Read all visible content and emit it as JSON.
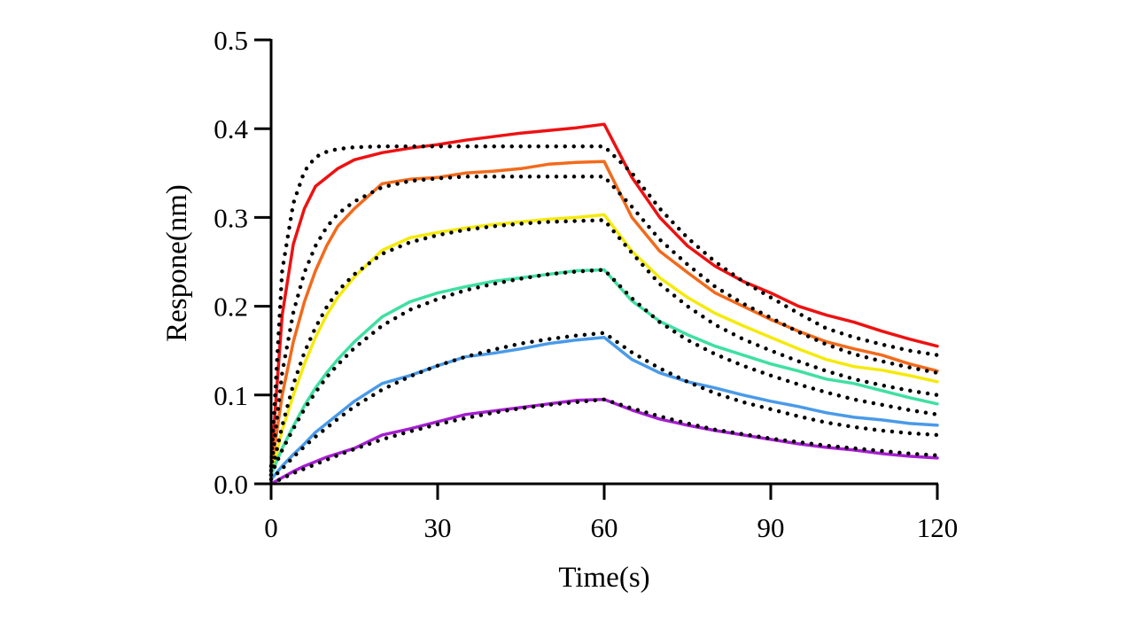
{
  "chart_data": {
    "type": "line",
    "title": "",
    "xlabel": "Time(s)",
    "ylabel": "Respone(nm)",
    "xlim": [
      0,
      120
    ],
    "ylim": [
      0,
      0.5
    ],
    "x_ticks": [
      "0",
      "30",
      "60",
      "90",
      "120"
    ],
    "x_tick_values": [
      0,
      30,
      60,
      90,
      120
    ],
    "y_ticks": [
      "0.0",
      "0.1",
      "0.2",
      "0.3",
      "0.4",
      "0.5"
    ],
    "y_tick_values": [
      0,
      0.1,
      0.2,
      0.3,
      0.4,
      0.5
    ],
    "grid": false,
    "legend": "none",
    "x": [
      0,
      2,
      4,
      6,
      8,
      10,
      12,
      15,
      20,
      25,
      30,
      35,
      40,
      45,
      50,
      55,
      60,
      65,
      70,
      75,
      80,
      85,
      90,
      95,
      100,
      105,
      110,
      115,
      120
    ],
    "series": [
      {
        "color": "#ee1111",
        "values": [
          0.02,
          0.19,
          0.27,
          0.31,
          0.335,
          0.345,
          0.355,
          0.365,
          0.373,
          0.378,
          0.382,
          0.387,
          0.391,
          0.395,
          0.398,
          0.401,
          0.405,
          0.345,
          0.3,
          0.268,
          0.245,
          0.228,
          0.215,
          0.2,
          0.19,
          0.182,
          0.172,
          0.163,
          0.155
        ]
      },
      {
        "color": "#f26a1b",
        "values": [
          0.015,
          0.1,
          0.16,
          0.205,
          0.24,
          0.268,
          0.29,
          0.31,
          0.338,
          0.343,
          0.345,
          0.35,
          0.352,
          0.355,
          0.36,
          0.362,
          0.363,
          0.3,
          0.262,
          0.238,
          0.215,
          0.2,
          0.185,
          0.172,
          0.16,
          0.152,
          0.145,
          0.135,
          0.127
        ]
      },
      {
        "color": "#f5ea0a",
        "values": [
          0.01,
          0.06,
          0.1,
          0.135,
          0.165,
          0.19,
          0.21,
          0.233,
          0.263,
          0.277,
          0.283,
          0.288,
          0.292,
          0.295,
          0.298,
          0.3,
          0.303,
          0.262,
          0.232,
          0.21,
          0.192,
          0.178,
          0.165,
          0.152,
          0.14,
          0.132,
          0.128,
          0.122,
          0.115
        ]
      },
      {
        "color": "#3fe0a2",
        "values": [
          0.01,
          0.04,
          0.065,
          0.088,
          0.108,
          0.125,
          0.14,
          0.16,
          0.188,
          0.205,
          0.215,
          0.222,
          0.228,
          0.232,
          0.236,
          0.24,
          0.241,
          0.206,
          0.183,
          0.168,
          0.155,
          0.145,
          0.135,
          0.127,
          0.118,
          0.113,
          0.105,
          0.097,
          0.09
        ]
      },
      {
        "color": "#4a9ae8",
        "values": [
          0.005,
          0.02,
          0.033,
          0.045,
          0.058,
          0.068,
          0.078,
          0.093,
          0.113,
          0.122,
          0.133,
          0.143,
          0.147,
          0.152,
          0.158,
          0.162,
          0.165,
          0.14,
          0.125,
          0.115,
          0.108,
          0.1,
          0.093,
          0.087,
          0.08,
          0.075,
          0.072,
          0.068,
          0.066
        ]
      },
      {
        "color": "#a61fd0",
        "values": [
          0.0,
          0.007,
          0.014,
          0.02,
          0.025,
          0.03,
          0.034,
          0.04,
          0.055,
          0.062,
          0.07,
          0.078,
          0.082,
          0.086,
          0.09,
          0.094,
          0.095,
          0.083,
          0.073,
          0.066,
          0.06,
          0.055,
          0.05,
          0.045,
          0.041,
          0.038,
          0.034,
          0.031,
          0.029
        ]
      }
    ],
    "fit_series": [
      {
        "values": [
          0.02,
          0.24,
          0.316,
          0.352,
          0.368,
          0.374,
          0.377,
          0.379,
          0.38,
          0.38,
          0.38,
          0.38,
          0.38,
          0.38,
          0.38,
          0.38,
          0.38,
          0.35,
          0.31,
          0.277,
          0.25,
          0.228,
          0.21,
          0.192,
          0.175,
          0.165,
          0.157,
          0.15,
          0.145
        ]
      },
      {
        "values": [
          0.015,
          0.125,
          0.193,
          0.238,
          0.268,
          0.289,
          0.304,
          0.318,
          0.334,
          0.341,
          0.344,
          0.346,
          0.346,
          0.346,
          0.346,
          0.346,
          0.346,
          0.312,
          0.275,
          0.247,
          0.222,
          0.203,
          0.187,
          0.171,
          0.157,
          0.146,
          0.138,
          0.131,
          0.125
        ]
      },
      {
        "values": [
          0.01,
          0.065,
          0.112,
          0.148,
          0.176,
          0.199,
          0.217,
          0.236,
          0.259,
          0.272,
          0.28,
          0.286,
          0.29,
          0.293,
          0.295,
          0.296,
          0.297,
          0.26,
          0.225,
          0.2,
          0.179,
          0.163,
          0.15,
          0.138,
          0.127,
          0.118,
          0.111,
          0.105,
          0.1
        ]
      },
      {
        "values": [
          0.01,
          0.038,
          0.062,
          0.084,
          0.103,
          0.12,
          0.134,
          0.153,
          0.178,
          0.196,
          0.208,
          0.218,
          0.225,
          0.231,
          0.236,
          0.239,
          0.241,
          0.209,
          0.182,
          0.162,
          0.146,
          0.133,
          0.122,
          0.112,
          0.103,
          0.095,
          0.089,
          0.083,
          0.078
        ]
      },
      {
        "values": [
          0.005,
          0.017,
          0.03,
          0.042,
          0.053,
          0.063,
          0.073,
          0.087,
          0.106,
          0.121,
          0.133,
          0.143,
          0.151,
          0.158,
          0.163,
          0.167,
          0.17,
          0.148,
          0.13,
          0.115,
          0.102,
          0.092,
          0.084,
          0.076,
          0.069,
          0.064,
          0.06,
          0.057,
          0.055
        ]
      },
      {
        "values": [
          0.0,
          0.006,
          0.012,
          0.017,
          0.022,
          0.027,
          0.032,
          0.039,
          0.05,
          0.059,
          0.067,
          0.074,
          0.08,
          0.085,
          0.089,
          0.092,
          0.095,
          0.085,
          0.076,
          0.068,
          0.061,
          0.056,
          0.051,
          0.047,
          0.043,
          0.04,
          0.037,
          0.034,
          0.032
        ]
      }
    ]
  }
}
